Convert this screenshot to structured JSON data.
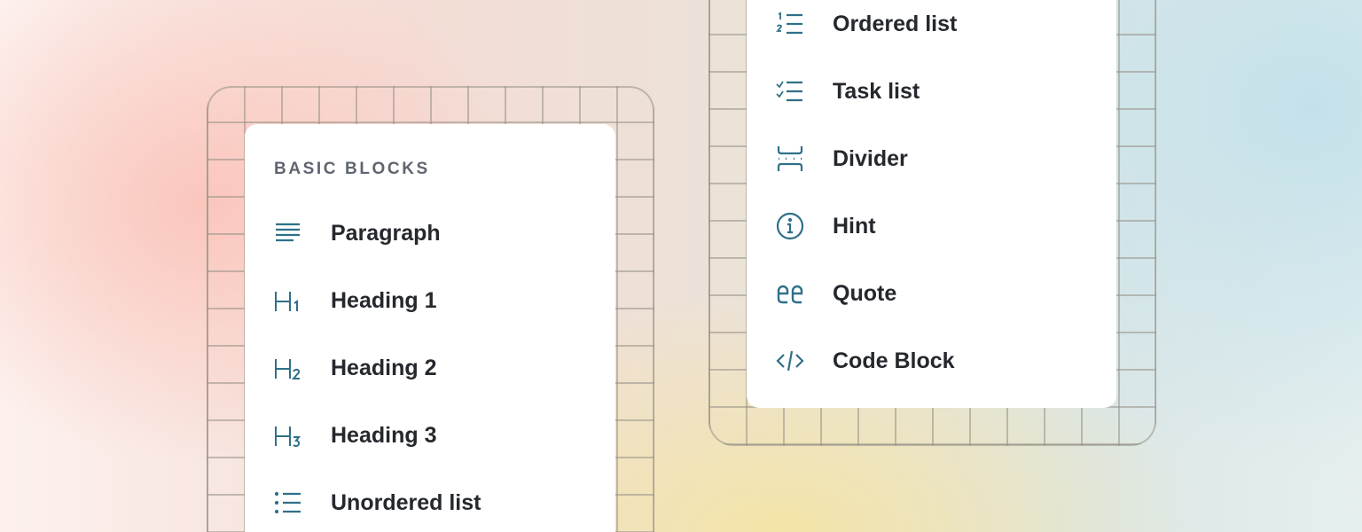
{
  "left_menu": {
    "section_title": "BASIC BLOCKS",
    "items": [
      {
        "label": "Paragraph",
        "icon": "paragraph-icon"
      },
      {
        "label": "Heading 1",
        "icon": "heading-1-icon"
      },
      {
        "label": "Heading 2",
        "icon": "heading-2-icon"
      },
      {
        "label": "Heading 3",
        "icon": "heading-3-icon"
      },
      {
        "label": "Unordered list",
        "icon": "unordered-list-icon"
      }
    ]
  },
  "right_menu": {
    "items": [
      {
        "label": "Ordered list",
        "icon": "ordered-list-icon"
      },
      {
        "label": "Task list",
        "icon": "task-list-icon"
      },
      {
        "label": "Divider",
        "icon": "divider-icon"
      },
      {
        "label": "Hint",
        "icon": "info-icon"
      },
      {
        "label": "Quote",
        "icon": "quote-icon"
      },
      {
        "label": "Code Block",
        "icon": "code-icon"
      }
    ]
  },
  "colors": {
    "icon": "#2f7088",
    "text": "#25282d",
    "section_title": "#5f6570"
  }
}
